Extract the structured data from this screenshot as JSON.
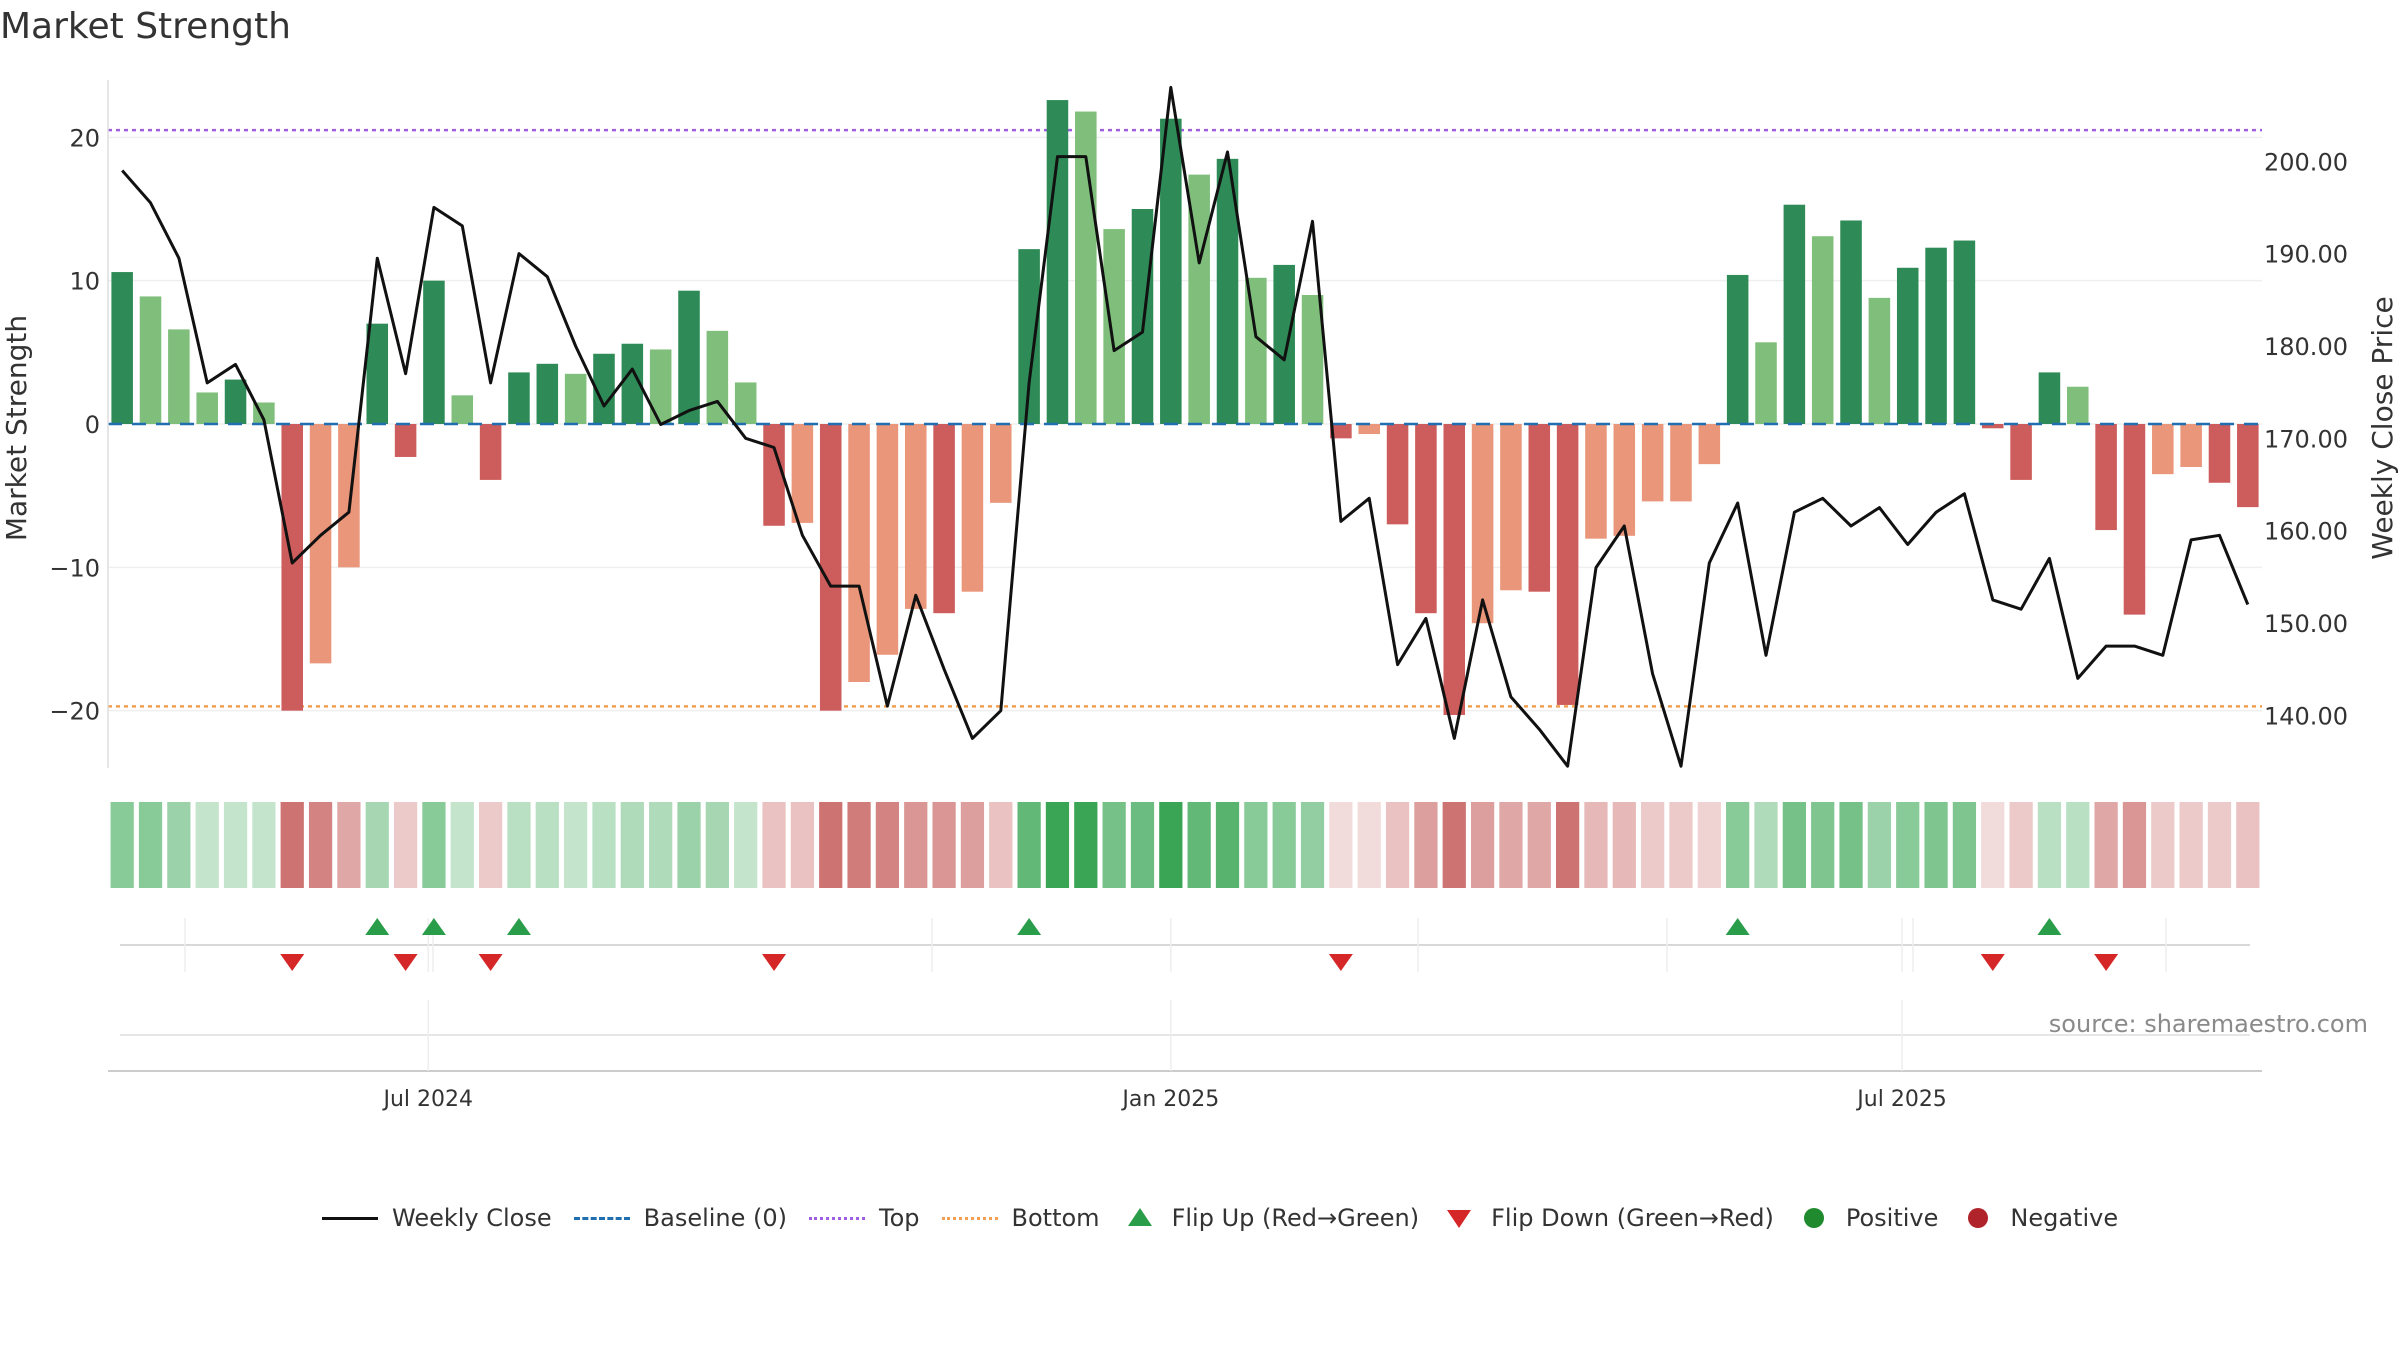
{
  "chart_data": {
    "type": "bar",
    "title": "Market Strength",
    "ylabel": "Market Strength",
    "y2label": "Weekly Close Price",
    "ylim": [
      -24,
      24
    ],
    "y2lim": [
      134.3,
      208.8
    ],
    "yticks": [
      "20",
      "10",
      "0",
      "−10",
      "−20"
    ],
    "ytick_values": [
      20,
      10,
      0,
      -10,
      -20
    ],
    "y2ticks": [
      "200.00",
      "190.00",
      "180.00",
      "170.00",
      "160.00",
      "150.00",
      "140.00"
    ],
    "y2tick_values": [
      200,
      190,
      180,
      170,
      160,
      150,
      140
    ],
    "xticks": [
      "Jul 2024",
      "Jan 2025",
      "Jul 2025"
    ],
    "xtick_weeks": [
      11.3,
      37.5,
      63.3
    ],
    "top_line": 20.5,
    "bottom_line": -19.7,
    "baseline": 0,
    "strength": [
      10.6,
      8.9,
      6.6,
      2.2,
      3.1,
      1.5,
      -20.0,
      -16.7,
      -10.0,
      7.0,
      -2.3,
      10.0,
      2.0,
      -3.9,
      3.6,
      4.2,
      3.5,
      4.9,
      5.6,
      5.2,
      9.3,
      6.5,
      2.9,
      -7.1,
      -6.9,
      -20.0,
      -18.0,
      -16.1,
      -12.9,
      -13.2,
      -11.7,
      -5.5,
      12.2,
      22.6,
      21.8,
      13.6,
      15.0,
      21.3,
      17.4,
      18.5,
      10.2,
      11.1,
      9.0,
      -1.0,
      -0.7,
      -7.0,
      -13.2,
      -20.3,
      -13.9,
      -11.6,
      -11.7,
      -19.6,
      -8.0,
      -7.8,
      -5.4,
      -5.4,
      -2.8,
      10.4,
      5.7,
      15.3,
      13.1,
      14.2,
      8.8,
      10.9,
      12.3,
      12.8,
      -0.3,
      -3.9,
      3.6,
      2.6,
      -7.4,
      -13.3,
      -3.5,
      -3.0,
      -4.1,
      -5.8
    ],
    "bar_shade": [
      "d",
      "m",
      "m",
      "l",
      "d",
      "l",
      "d",
      "m",
      "m",
      "d",
      "d",
      "d",
      "l",
      "d",
      "d",
      "d",
      "l",
      "d",
      "d",
      "l",
      "d",
      "m",
      "l",
      "d",
      "m",
      "d",
      "m",
      "m",
      "m",
      "d",
      "m",
      "m",
      "d",
      "d",
      "m",
      "m",
      "d",
      "d",
      "m",
      "d",
      "m",
      "d",
      "m",
      "d",
      "m",
      "d",
      "d",
      "d",
      "m",
      "m",
      "d",
      "d",
      "m",
      "m",
      "m",
      "m",
      "m",
      "d",
      "m",
      "d",
      "m",
      "d",
      "m",
      "d",
      "d",
      "d",
      "d",
      "d",
      "d",
      "m",
      "d",
      "d",
      "m",
      "m",
      "d",
      "d"
    ],
    "strip_alpha": [
      0.6,
      0.6,
      0.5,
      0.3,
      0.3,
      0.3,
      0.8,
      0.7,
      0.5,
      0.45,
      0.3,
      0.6,
      0.3,
      0.3,
      0.35,
      0.35,
      0.3,
      0.35,
      0.4,
      0.4,
      0.5,
      0.45,
      0.3,
      0.35,
      0.35,
      0.8,
      0.75,
      0.7,
      0.6,
      0.6,
      0.55,
      0.35,
      0.8,
      1.0,
      1.0,
      0.7,
      0.75,
      1.0,
      0.8,
      0.85,
      0.6,
      0.6,
      0.55,
      0.2,
      0.2,
      0.35,
      0.55,
      0.8,
      0.55,
      0.5,
      0.5,
      0.8,
      0.4,
      0.4,
      0.3,
      0.3,
      0.25,
      0.6,
      0.4,
      0.7,
      0.65,
      0.7,
      0.5,
      0.6,
      0.65,
      0.65,
      0.2,
      0.3,
      0.35,
      0.35,
      0.5,
      0.6,
      0.3,
      0.3,
      0.3,
      0.35
    ],
    "weekly_close": [
      199.0,
      195.5,
      189.5,
      176.0,
      178.0,
      172.0,
      156.5,
      159.5,
      162.0,
      189.5,
      177.0,
      195.0,
      193.0,
      176.0,
      190.0,
      187.5,
      180.0,
      173.5,
      177.5,
      171.5,
      173.0,
      174.0,
      170.0,
      169.0,
      159.5,
      154.0,
      154.0,
      141.0,
      153.0,
      145.0,
      137.5,
      140.5,
      176.0,
      200.5,
      200.5,
      179.5,
      181.5,
      208.0,
      189.0,
      201.0,
      181.0,
      178.5,
      193.5,
      161.0,
      163.5,
      145.5,
      150.5,
      137.5,
      152.5,
      142.0,
      138.5,
      134.5,
      156.0,
      160.5,
      144.5,
      134.5,
      156.5,
      163.0,
      146.5,
      162.0,
      163.5,
      160.5,
      162.5,
      158.5,
      162.0,
      164.0,
      152.5,
      151.5,
      157.0,
      144.0,
      147.5,
      147.5,
      146.5,
      159.0,
      159.5,
      152.0
    ],
    "flip_up_weeks": [
      9,
      11,
      14,
      32,
      57,
      68
    ],
    "flip_down_weeks": [
      6,
      10,
      13,
      23,
      43,
      66,
      70
    ],
    "series_legend": [
      "Weekly Close",
      "Baseline (0)",
      "Top",
      "Bottom",
      "Flip Up (Red→Green)",
      "Flip Down (Green→Red)",
      "Positive",
      "Negative"
    ]
  },
  "colors": {
    "green_dark": "#2e8b57",
    "green_light": "#7fbf7b",
    "red_dark": "#cd5c5c",
    "red_light": "#e9967a",
    "strip_green": "#3aa655",
    "strip_red": "#c0504d",
    "line": "#111111",
    "baseline": "#1f6fb2",
    "top": "#a05ee0",
    "bottom": "#f0a050",
    "flip_up": "#2a9d4a",
    "flip_down": "#d62728",
    "positive": "#1f8a2e",
    "negative": "#b0232a"
  },
  "source": "source: sharemaestro.com"
}
